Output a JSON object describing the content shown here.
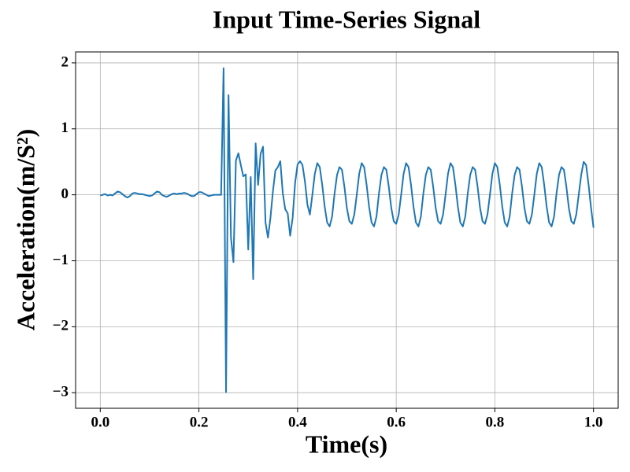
{
  "chart_data": {
    "type": "line",
    "title": "Input Time-Series Signal",
    "x_label": "Time(s)",
    "y_label": "Acceleration(m/S²)",
    "color": "#1f77b4",
    "grid": true,
    "xlim": [
      -0.05,
      1.05
    ],
    "ylim": [
      -3.236,
      2.166
    ],
    "xticks": [
      {
        "value": 0,
        "label": "0.0"
      },
      0.2,
      0.4,
      0.6,
      0.8,
      {
        "value": 1,
        "label": "1.0"
      }
    ],
    "yticks": [
      {
        "value": -3,
        "label": "−3"
      },
      {
        "value": -2,
        "label": "−2"
      },
      {
        "value": -1,
        "label": "−1"
      },
      0,
      1,
      2
    ],
    "x": [
      0,
      0.005,
      0.01,
      0.015,
      0.02,
      0.025,
      0.03,
      0.035,
      0.04,
      0.045,
      0.05,
      0.055,
      0.06,
      0.065,
      0.07,
      0.075,
      0.08,
      0.085,
      0.09,
      0.095,
      0.1,
      0.105,
      0.11,
      0.115,
      0.12,
      0.125,
      0.13,
      0.135,
      0.14,
      0.145,
      0.15,
      0.155,
      0.16,
      0.165,
      0.17,
      0.175,
      0.18,
      0.185,
      0.19,
      0.195,
      0.2,
      0.205,
      0.21,
      0.215,
      0.22,
      0.225,
      0.23,
      0.235,
      0.24,
      0.245,
      0.25,
      0.255,
      0.26,
      0.265,
      0.27,
      0.275,
      0.28,
      0.285,
      0.29,
      0.295,
      0.3,
      0.305,
      0.31,
      0.315,
      0.32,
      0.325,
      0.33,
      0.335,
      0.34,
      0.345,
      0.35,
      0.355,
      0.36,
      0.365,
      0.37,
      0.375,
      0.38,
      0.385,
      0.39,
      0.395,
      0.4,
      0.405,
      0.41,
      0.415,
      0.42,
      0.425,
      0.43,
      0.435,
      0.44,
      0.445,
      0.45,
      0.455,
      0.46,
      0.465,
      0.47,
      0.475,
      0.48,
      0.485,
      0.49,
      0.495,
      0.5,
      0.505,
      0.51,
      0.515,
      0.52,
      0.525,
      0.53,
      0.535,
      0.54,
      0.545,
      0.55,
      0.555,
      0.56,
      0.565,
      0.57,
      0.575,
      0.58,
      0.585,
      0.59,
      0.595,
      0.6,
      0.605,
      0.61,
      0.615,
      0.62,
      0.625,
      0.63,
      0.635,
      0.64,
      0.645,
      0.65,
      0.655,
      0.66,
      0.665,
      0.67,
      0.675,
      0.68,
      0.685,
      0.69,
      0.695,
      0.7,
      0.705,
      0.71,
      0.715,
      0.72,
      0.725,
      0.73,
      0.735,
      0.74,
      0.745,
      0.75,
      0.755,
      0.76,
      0.765,
      0.77,
      0.775,
      0.78,
      0.785,
      0.79,
      0.795,
      0.8,
      0.805,
      0.81,
      0.815,
      0.82,
      0.825,
      0.83,
      0.835,
      0.84,
      0.845,
      0.85,
      0.855,
      0.86,
      0.865,
      0.87,
      0.875,
      0.88,
      0.885,
      0.89,
      0.895,
      0.9,
      0.905,
      0.91,
      0.915,
      0.92,
      0.925,
      0.93,
      0.935,
      0.94,
      0.945,
      0.95,
      0.955,
      0.96,
      0.965,
      0.97,
      0.975,
      0.98,
      0.985,
      0.99,
      0.995,
      1
    ],
    "values": [
      -0.01,
      0.0,
      0.01,
      -0.01,
      0.0,
      -0.01,
      0.02,
      0.05,
      0.04,
      0.01,
      -0.02,
      -0.04,
      -0.02,
      0.02,
      0.03,
      0.02,
      0.01,
      0.01,
      0.0,
      -0.01,
      -0.02,
      -0.01,
      0.02,
      0.05,
      0.04,
      0.0,
      -0.02,
      -0.03,
      -0.01,
      0.01,
      0.02,
      0.01,
      0.02,
      0.02,
      0.03,
      0.02,
      0.0,
      -0.02,
      -0.02,
      0.01,
      0.04,
      0.04,
      0.02,
      0.0,
      -0.02,
      -0.01,
      0.0,
      0.0,
      0.0,
      0.0,
      1.92,
      -2.99,
      1.51,
      -0.65,
      -1.02,
      0.52,
      0.63,
      0.45,
      0.28,
      0.31,
      -0.83,
      0.27,
      -1.28,
      0.78,
      0.15,
      0.62,
      0.73,
      -0.42,
      -0.65,
      -0.35,
      0.05,
      0.37,
      0.42,
      0.51,
      0.03,
      -0.22,
      -0.28,
      -0.62,
      -0.35,
      0.18,
      0.46,
      0.51,
      0.45,
      0.2,
      -0.15,
      -0.3,
      0.0,
      0.32,
      0.48,
      0.42,
      0.15,
      -0.18,
      -0.42,
      -0.48,
      -0.33,
      0.02,
      0.3,
      0.42,
      0.38,
      0.12,
      -0.2,
      -0.4,
      -0.44,
      -0.3,
      0.0,
      0.32,
      0.48,
      0.42,
      0.15,
      -0.18,
      -0.42,
      -0.48,
      -0.33,
      0.02,
      0.3,
      0.42,
      0.38,
      0.12,
      -0.2,
      -0.4,
      -0.44,
      -0.3,
      0.0,
      0.32,
      0.48,
      0.42,
      0.15,
      -0.18,
      -0.42,
      -0.48,
      -0.33,
      0.02,
      0.3,
      0.42,
      0.38,
      0.12,
      -0.2,
      -0.4,
      -0.44,
      -0.3,
      0.0,
      0.32,
      0.48,
      0.42,
      0.15,
      -0.18,
      -0.42,
      -0.48,
      -0.33,
      0.02,
      0.3,
      0.42,
      0.38,
      0.12,
      -0.2,
      -0.4,
      -0.44,
      -0.3,
      0.0,
      0.32,
      0.48,
      0.42,
      0.15,
      -0.18,
      -0.42,
      -0.48,
      -0.33,
      0.02,
      0.3,
      0.42,
      0.38,
      0.12,
      -0.2,
      -0.4,
      -0.44,
      -0.3,
      0.0,
      0.32,
      0.48,
      0.42,
      0.15,
      -0.18,
      -0.42,
      -0.48,
      -0.33,
      0.02,
      0.3,
      0.42,
      0.38,
      0.12,
      -0.2,
      -0.4,
      -0.44,
      -0.3,
      0.0,
      0.3,
      0.5,
      0.45,
      0.15,
      -0.2,
      -0.5
    ]
  }
}
